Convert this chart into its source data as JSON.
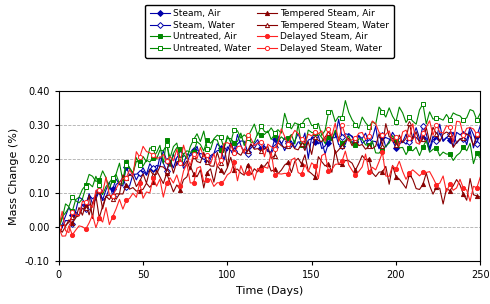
{
  "xlabel": "Time (Days)",
  "ylabel": "Mass Change (%)",
  "ylim": [
    -0.1,
    0.4
  ],
  "xlim": [
    0,
    250
  ],
  "yticks": [
    -0.1,
    0.0,
    0.1,
    0.2,
    0.3,
    0.4
  ],
  "xticks": [
    0,
    50,
    100,
    150,
    200,
    250
  ],
  "figsize": [
    4.9,
    3.04
  ],
  "dpi": 100,
  "series": {
    "steam_air": {
      "label": "Steam, Air",
      "color": "#0000aa",
      "marker": "D",
      "filled": true,
      "markersize": 3
    },
    "steam_water": {
      "label": "Steam, Water",
      "color": "#0000aa",
      "marker": "D",
      "filled": false,
      "markersize": 3
    },
    "untreated_air": {
      "label": "Untreated, Air",
      "color": "#008800",
      "marker": "s",
      "filled": true,
      "markersize": 3
    },
    "untreated_water": {
      "label": "Untreated, Water",
      "color": "#008800",
      "marker": "s",
      "filled": false,
      "markersize": 3
    },
    "tempered_steam_air": {
      "label": "Tempered Steam, Air",
      "color": "#880000",
      "marker": "^",
      "filled": true,
      "markersize": 3
    },
    "tempered_steam_water": {
      "label": "Tempered Steam, Water",
      "color": "#880000",
      "marker": "^",
      "filled": false,
      "markersize": 3
    },
    "delayed_steam_air": {
      "label": "Delayed Steam, Air",
      "color": "#ff2222",
      "marker": "o",
      "filled": true,
      "markersize": 3
    },
    "delayed_steam_water": {
      "label": "Delayed Steam, Water",
      "color": "#ff2222",
      "marker": "o",
      "filled": false,
      "markersize": 3
    }
  },
  "legend_order": [
    "steam_air",
    "steam_water",
    "untreated_air",
    "untreated_water",
    "tempered_steam_air",
    "tempered_steam_water",
    "delayed_steam_air",
    "delayed_steam_water"
  ],
  "background_color": "#ffffff",
  "grid_color": "#999999",
  "grid_linestyle": "--",
  "grid_alpha": 0.8
}
